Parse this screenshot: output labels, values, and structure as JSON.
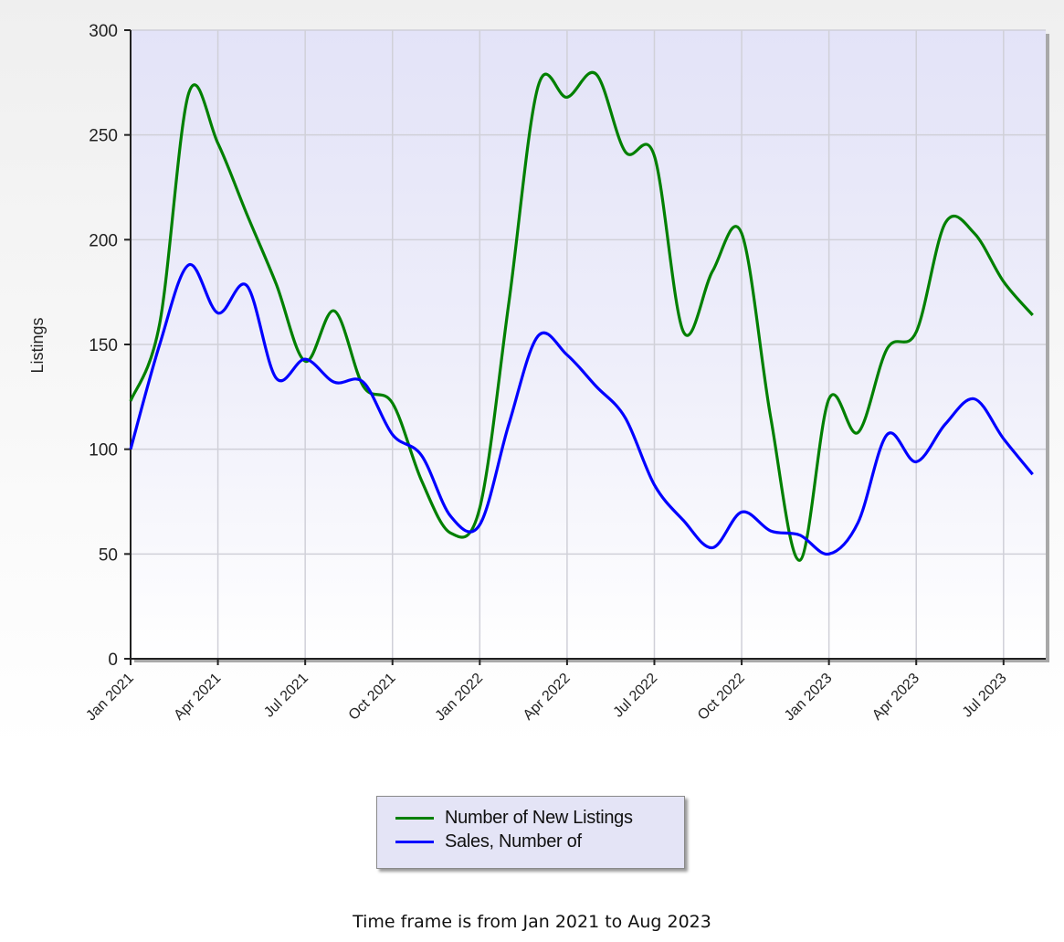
{
  "chart_data": {
    "type": "line",
    "title": "",
    "xlabel": "",
    "ylabel": "Listings",
    "ylim": [
      0,
      300
    ],
    "y_ticks": [
      0,
      50,
      100,
      150,
      200,
      250,
      300
    ],
    "x_tick_labels": [
      "Jan 2021",
      "Apr 2021",
      "Jul 2021",
      "Oct 2021",
      "Jan 2022",
      "Apr 2022",
      "Jul 2022",
      "Oct 2022",
      "Jan 2023",
      "Apr 2023",
      "Jul 2023"
    ],
    "x": [
      "Jan 2021",
      "Feb 2021",
      "Mar 2021",
      "Apr 2021",
      "May 2021",
      "Jun 2021",
      "Jul 2021",
      "Aug 2021",
      "Sep 2021",
      "Oct 2021",
      "Nov 2021",
      "Dec 2021",
      "Jan 2022",
      "Feb 2022",
      "Mar 2022",
      "Apr 2022",
      "May 2022",
      "Jun 2022",
      "Jul 2022",
      "Aug 2022",
      "Sep 2022",
      "Oct 2022",
      "Nov 2022",
      "Dec 2022",
      "Jan 2023",
      "Feb 2023",
      "Mar 2023",
      "Apr 2023",
      "May 2023",
      "Jun 2023",
      "Jul 2023",
      "Aug 2023"
    ],
    "series": [
      {
        "name": "Number of New Listings",
        "color": "#008000",
        "values": [
          123,
          160,
          270,
          246,
          212,
          179,
          142,
          166,
          130,
          122,
          85,
          60,
          72,
          170,
          273,
          268,
          279,
          242,
          240,
          156,
          185,
          203,
          115,
          47,
          124,
          108,
          148,
          156,
          208,
          203,
          180,
          164
        ]
      },
      {
        "name": "Sales, Number of",
        "color": "#0000ff",
        "values": [
          100,
          150,
          188,
          165,
          178,
          134,
          143,
          132,
          132,
          107,
          97,
          68,
          64,
          112,
          154,
          145,
          130,
          115,
          83,
          66,
          53,
          70,
          61,
          59,
          50,
          65,
          107,
          94,
          112,
          124,
          105,
          88
        ]
      }
    ],
    "grid": true,
    "legend_position": "bottom-center"
  },
  "footer": {
    "note": "Time frame is from Jan 2021 to Aug 2023"
  }
}
